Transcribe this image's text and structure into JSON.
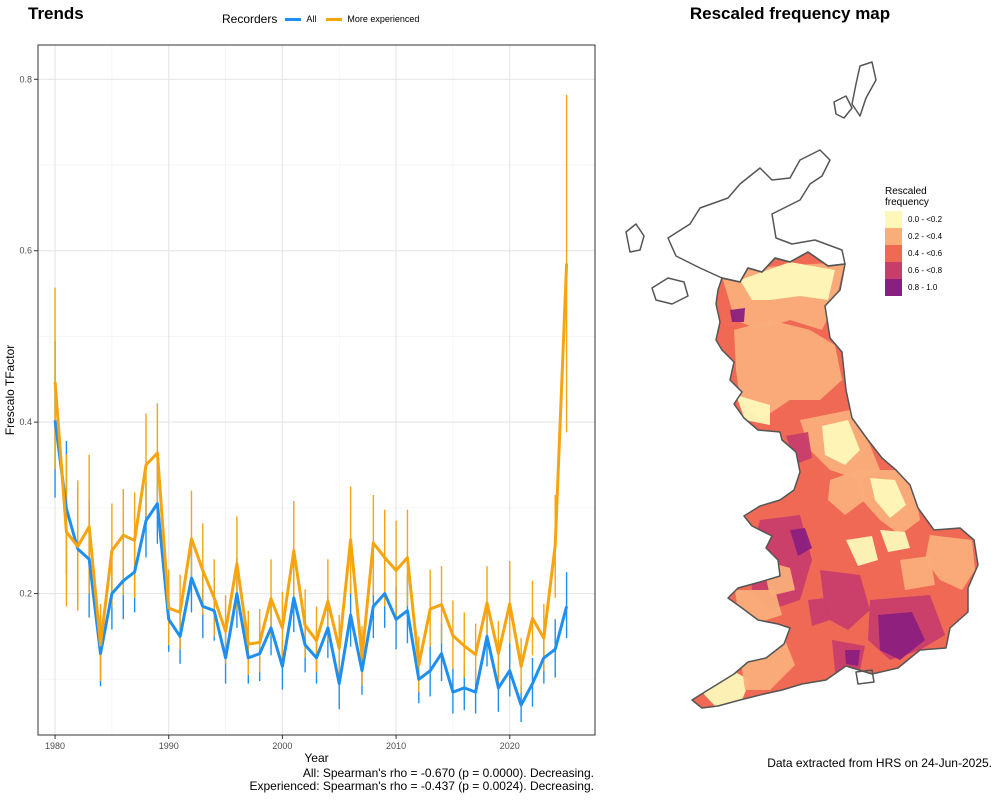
{
  "chart_data": {
    "type": "line",
    "title": "Trends",
    "xlabel": "Year",
    "ylabel": "Frescalo TFactor",
    "xlim": [
      1978.5,
      2027.5
    ],
    "ylim": [
      0.035,
      0.84
    ],
    "x_ticks": [
      1980,
      1990,
      2000,
      2010,
      2020
    ],
    "y_ticks": [
      0.2,
      0.4,
      0.6,
      0.8
    ],
    "grid": true,
    "legend": {
      "title": "Recorders",
      "placement": "top"
    },
    "years": [
      1980,
      1981,
      1982,
      1983,
      1984,
      1985,
      1986,
      1987,
      1988,
      1989,
      1990,
      1991,
      1992,
      1993,
      1994,
      1995,
      1996,
      1997,
      1998,
      1999,
      2000,
      2001,
      2002,
      2003,
      2004,
      2005,
      2006,
      2007,
      2008,
      2009,
      2010,
      2011,
      2012,
      2013,
      2014,
      2015,
      2016,
      2017,
      2018,
      2019,
      2020,
      2021,
      2022,
      2023,
      2024,
      2025
    ],
    "series": [
      {
        "name": "All",
        "color": "#1f8fef",
        "values": [
          0.402,
          0.299,
          0.252,
          0.24,
          0.13,
          0.2,
          0.215,
          0.225,
          0.285,
          0.305,
          0.17,
          0.15,
          0.218,
          0.185,
          0.18,
          0.125,
          0.2,
          0.125,
          0.13,
          0.16,
          0.115,
          0.195,
          0.14,
          0.125,
          0.16,
          0.095,
          0.175,
          0.11,
          0.185,
          0.2,
          0.17,
          0.18,
          0.1,
          0.11,
          0.13,
          0.085,
          0.09,
          0.085,
          0.15,
          0.09,
          0.11,
          0.07,
          0.095,
          0.125,
          0.135,
          0.185
        ],
        "lower": [
          0.312,
          0.222,
          0.185,
          0.172,
          0.092,
          0.158,
          0.17,
          0.178,
          0.242,
          0.258,
          0.132,
          0.118,
          0.178,
          0.148,
          0.145,
          0.095,
          0.16,
          0.095,
          0.098,
          0.128,
          0.088,
          0.155,
          0.108,
          0.095,
          0.125,
          0.065,
          0.138,
          0.082,
          0.148,
          0.16,
          0.135,
          0.142,
          0.072,
          0.08,
          0.098,
          0.06,
          0.064,
          0.06,
          0.115,
          0.062,
          0.08,
          0.05,
          0.068,
          0.095,
          0.102,
          0.148
        ],
        "upper": [
          0.495,
          0.378,
          0.322,
          0.31,
          0.175,
          0.242,
          0.262,
          0.275,
          0.33,
          0.352,
          0.21,
          0.188,
          0.262,
          0.225,
          0.218,
          0.158,
          0.242,
          0.158,
          0.165,
          0.195,
          0.145,
          0.238,
          0.175,
          0.158,
          0.198,
          0.128,
          0.215,
          0.14,
          0.225,
          0.242,
          0.208,
          0.222,
          0.13,
          0.142,
          0.165,
          0.112,
          0.118,
          0.112,
          0.188,
          0.12,
          0.142,
          0.092,
          0.125,
          0.158,
          0.17,
          0.225
        ]
      },
      {
        "name": "More experienced",
        "color": "#f6a40f",
        "values": [
          0.447,
          0.272,
          0.255,
          0.278,
          0.14,
          0.25,
          0.268,
          0.262,
          0.35,
          0.364,
          0.183,
          0.178,
          0.264,
          0.227,
          0.195,
          0.156,
          0.235,
          0.141,
          0.143,
          0.194,
          0.16,
          0.25,
          0.163,
          0.145,
          0.191,
          0.136,
          0.263,
          0.126,
          0.259,
          0.242,
          0.227,
          0.242,
          0.117,
          0.182,
          0.187,
          0.151,
          0.139,
          0.129,
          0.189,
          0.13,
          0.188,
          0.115,
          0.171,
          0.148,
          0.256,
          0.585
        ],
        "lower": [
          0.345,
          0.185,
          0.18,
          0.2,
          0.098,
          0.185,
          0.198,
          0.195,
          0.29,
          0.305,
          0.14,
          0.135,
          0.21,
          0.175,
          0.15,
          0.118,
          0.18,
          0.105,
          0.108,
          0.15,
          0.12,
          0.195,
          0.125,
          0.108,
          0.145,
          0.1,
          0.2,
          0.093,
          0.198,
          0.185,
          0.172,
          0.185,
          0.085,
          0.138,
          0.142,
          0.112,
          0.102,
          0.095,
          0.145,
          0.096,
          0.142,
          0.084,
          0.128,
          0.11,
          0.195,
          0.388
        ],
        "upper": [
          0.557,
          0.362,
          0.332,
          0.362,
          0.188,
          0.305,
          0.322,
          0.318,
          0.41,
          0.422,
          0.228,
          0.222,
          0.32,
          0.282,
          0.24,
          0.198,
          0.29,
          0.18,
          0.182,
          0.24,
          0.202,
          0.308,
          0.205,
          0.185,
          0.24,
          0.175,
          0.325,
          0.162,
          0.315,
          0.298,
          0.285,
          0.298,
          0.15,
          0.228,
          0.232,
          0.192,
          0.178,
          0.165,
          0.232,
          0.168,
          0.238,
          0.148,
          0.215,
          0.188,
          0.315,
          0.782
        ]
      }
    ]
  },
  "stats": {
    "all": "All: Spearman's rho = -0.670 (p = 0.0000). Decreasing.",
    "experienced": "Experienced: Spearman's rho = -0.437 (p = 0.0024). Decreasing."
  },
  "map": {
    "title": "Rescaled frequency map",
    "legend_title_line1": "Rescaled",
    "legend_title_line2": "frequency",
    "classes": [
      {
        "label": "0.0 - <0.2",
        "color": "#fdf8b9"
      },
      {
        "label": "0.2 - <0.4",
        "color": "#f9ae7a"
      },
      {
        "label": "0.4 - <0.6",
        "color": "#f06955"
      },
      {
        "label": "0.6 - <0.8",
        "color": "#c83e6b"
      },
      {
        "label": "0.8 - 1.0",
        "color": "#8b1f7f"
      }
    ],
    "outline_color": "#555555",
    "credit": "Data extracted from HRS on 24-Jun-2025."
  }
}
